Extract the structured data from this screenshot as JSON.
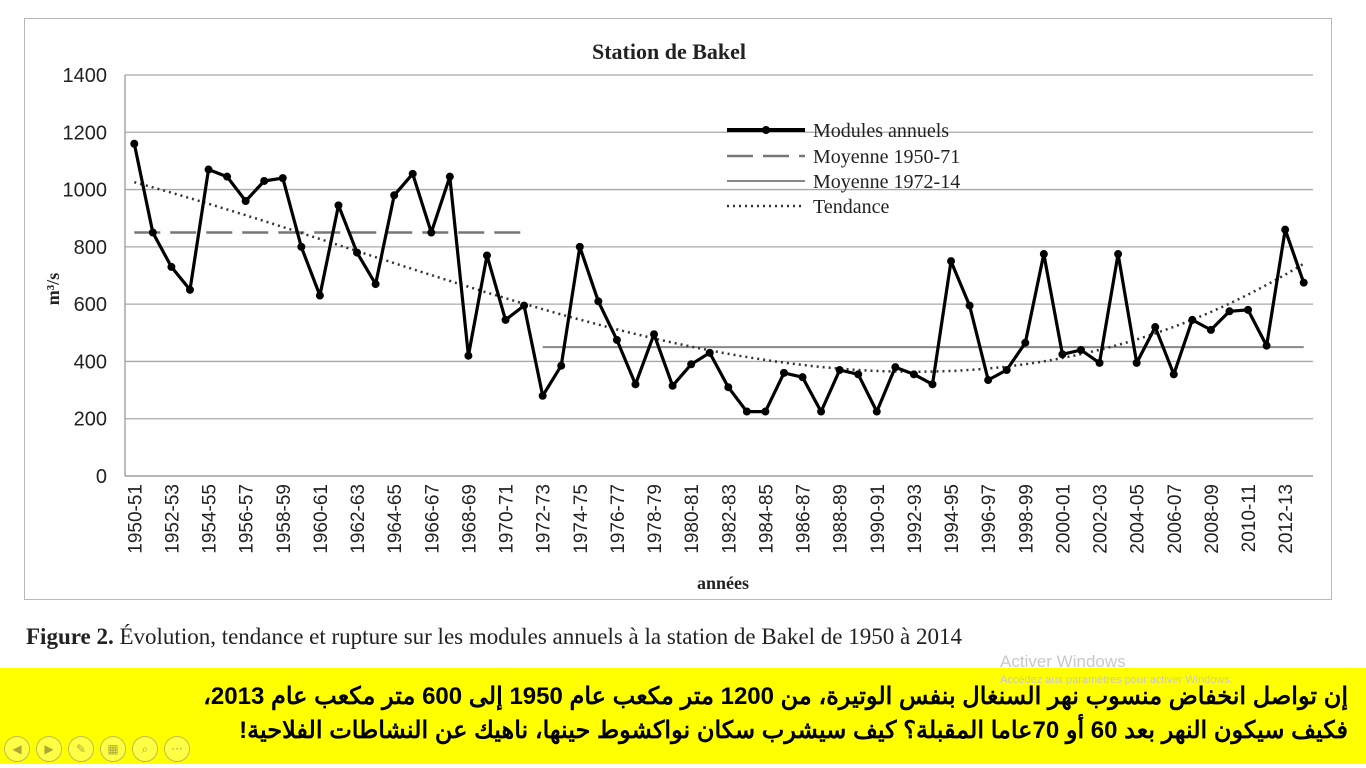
{
  "chart_data": {
    "type": "line",
    "title": "Station de Bakel",
    "xlabel": "années",
    "ylabel": "m³/s",
    "ylim": [
      0,
      1400
    ],
    "yticks": [
      0,
      200,
      400,
      600,
      800,
      1000,
      1200,
      1400
    ],
    "grid": true,
    "legend_position": "top-right",
    "x_tick_labels": [
      "1950-51",
      "1952-53",
      "1954-55",
      "1956-57",
      "1958-59",
      "1960-61",
      "1962-63",
      "1964-65",
      "1966-67",
      "1968-69",
      "1970-71",
      "1972-73",
      "1974-75",
      "1976-77",
      "1978-79",
      "1980-81",
      "1982-83",
      "1984-85",
      "1986-87",
      "1988-89",
      "1990-91",
      "1992-93",
      "1994-95",
      "1996-97",
      "1998-99",
      "2000-01",
      "2002-03",
      "2004-05",
      "2006-07",
      "2008-09",
      "2010-11",
      "2012-13"
    ],
    "years": [
      "1950-51",
      "1951-52",
      "1952-53",
      "1953-54",
      "1954-55",
      "1955-56",
      "1956-57",
      "1957-58",
      "1958-59",
      "1959-60",
      "1960-61",
      "1961-62",
      "1962-63",
      "1963-64",
      "1964-65",
      "1965-66",
      "1966-67",
      "1967-68",
      "1968-69",
      "1969-70",
      "1970-71",
      "1971-72",
      "1972-73",
      "1973-74",
      "1974-75",
      "1975-76",
      "1976-77",
      "1977-78",
      "1978-79",
      "1979-80",
      "1980-81",
      "1981-82",
      "1982-83",
      "1983-84",
      "1984-85",
      "1985-86",
      "1986-87",
      "1987-88",
      "1988-89",
      "1989-90",
      "1990-91",
      "1991-92",
      "1992-93",
      "1993-94",
      "1994-95",
      "1995-96",
      "1996-97",
      "1997-98",
      "1998-99",
      "1999-00",
      "2000-01",
      "2001-02",
      "2002-03",
      "2003-04",
      "2004-05",
      "2005-06",
      "2006-07",
      "2007-08",
      "2008-09",
      "2009-10",
      "2010-11",
      "2011-12",
      "2012-13",
      "2013-14"
    ],
    "series": [
      {
        "name": "Modules annuels",
        "style": "solid-markers",
        "color": "#000000",
        "values": [
          1160,
          850,
          730,
          650,
          1070,
          1045,
          960,
          1030,
          1040,
          800,
          630,
          945,
          780,
          670,
          980,
          1055,
          850,
          1045,
          420,
          770,
          545,
          595,
          280,
          385,
          800,
          610,
          475,
          320,
          495,
          315,
          390,
          430,
          310,
          225,
          225,
          360,
          345,
          225,
          370,
          355,
          225,
          380,
          355,
          320,
          750,
          595,
          335,
          370,
          465,
          775,
          425,
          440,
          395,
          775,
          395,
          520,
          355,
          545,
          510,
          575,
          580,
          455,
          860,
          675
        ]
      },
      {
        "name": "Moyenne 1950-71",
        "style": "dashed",
        "color": "#777777",
        "range": [
          "1950-51",
          "1971-72"
        ],
        "value": 850
      },
      {
        "name": "Moyenne 1972-14",
        "style": "thin-solid",
        "color": "#888888",
        "range": [
          "1972-73",
          "2013-14"
        ],
        "value": 450
      },
      {
        "name": "Tendance",
        "style": "dotted",
        "color": "#333333"
      }
    ]
  },
  "caption": {
    "figure_label": "Figure 2.",
    "text": " Évolution, tendance et rupture sur les modules annuels à la station de Bakel de 1950 à 2014"
  },
  "banner": {
    "line1_parts": [
      "إن تواصل انخفاض منسوب نهر السنغال بنفس الوتيرة، من ",
      "1200",
      " متر مكعب عام ",
      "1950",
      " إلى ",
      "600",
      " متر مكعب عام ",
      "2013",
      "،"
    ],
    "line2_parts": [
      "فكيف سيكون النهر بعد ",
      "60",
      " أو ",
      "70",
      "عاما المقبلة؟ كيف سيشرب سكان نواكشوط حينها، ناهيك عن النشاطات الفلاحية!"
    ],
    "color": "#ffff00"
  },
  "watermark": {
    "line1": "Activer Windows",
    "line2": "Accédez aux paramètres pour activer Windows."
  },
  "slide_nav": {
    "icons": [
      "prev-arrow-icon",
      "next-arrow-icon",
      "pen-icon",
      "slides-icon",
      "zoom-icon",
      "more-icon"
    ],
    "glyphs": [
      "◀",
      "▶",
      "✎",
      "▦",
      "⌕",
      "···"
    ]
  }
}
